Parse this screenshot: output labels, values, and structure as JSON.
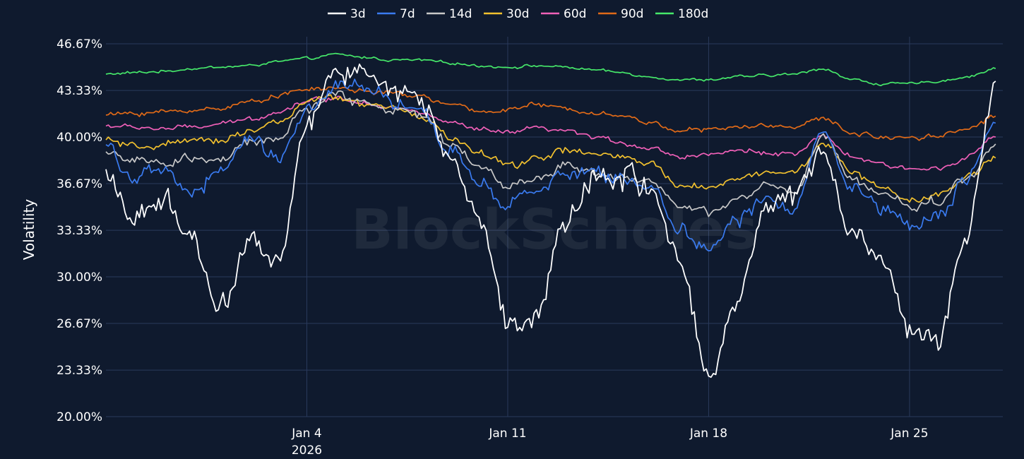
{
  "chart_data": {
    "type": "line",
    "title": "",
    "xlabel": "",
    "ylabel": "Volatility",
    "watermark": "BlockScholes",
    "ylim": [
      20.0,
      46.67
    ],
    "yticks": [
      "20.00%",
      "23.33%",
      "26.67%",
      "30.00%",
      "33.33%",
      "36.67%",
      "40.00%",
      "43.33%",
      "46.67%"
    ],
    "xlim": [
      "2025-12-28",
      "2026-01-28T06:00"
    ],
    "xticks": [
      {
        "date": "2026-01-04",
        "label": "Jan 4",
        "sublabel": "2026"
      },
      {
        "date": "2026-01-11",
        "label": "Jan 11",
        "sublabel": ""
      },
      {
        "date": "2026-01-18",
        "label": "Jan 18",
        "sublabel": ""
      },
      {
        "date": "2026-01-25",
        "label": "Jan 25",
        "sublabel": ""
      }
    ],
    "grid": true,
    "legend_position": "top-center",
    "x": [
      "2025-12-28",
      "2025-12-29",
      "2025-12-30",
      "2025-12-31",
      "2026-01-01",
      "2026-01-02",
      "2026-01-03",
      "2026-01-04",
      "2026-01-05",
      "2026-01-06",
      "2026-01-07",
      "2026-01-08",
      "2026-01-09",
      "2026-01-10",
      "2026-01-11",
      "2026-01-12",
      "2026-01-13",
      "2026-01-14",
      "2026-01-15",
      "2026-01-16",
      "2026-01-17",
      "2026-01-18",
      "2026-01-19",
      "2026-01-20",
      "2026-01-21",
      "2026-01-22",
      "2026-01-23",
      "2026-01-24",
      "2026-01-25",
      "2026-01-26",
      "2026-01-27",
      "2026-01-28"
    ],
    "series": [
      {
        "name": "3d",
        "color": "#ffffff",
        "values": [
          36.8,
          34.5,
          35.5,
          32.5,
          28.0,
          32.5,
          31.0,
          40.5,
          45.0,
          44.5,
          43.5,
          42.5,
          38.5,
          34.0,
          27.0,
          27.5,
          34.0,
          37.0,
          37.5,
          36.0,
          31.5,
          23.0,
          28.5,
          35.5,
          36.0,
          38.5,
          33.5,
          31.0,
          26.5,
          25.5,
          33.0,
          44.0
        ]
      },
      {
        "name": "7d",
        "color": "#3a7bf0",
        "values": [
          39.5,
          37.0,
          37.5,
          36.0,
          37.5,
          40.0,
          38.5,
          42.0,
          43.5,
          43.5,
          42.5,
          41.5,
          39.0,
          37.0,
          35.0,
          36.0,
          37.5,
          37.5,
          37.0,
          36.5,
          33.5,
          32.0,
          34.0,
          35.5,
          35.0,
          40.5,
          36.5,
          35.0,
          34.0,
          34.5,
          37.0,
          41.0
        ]
      },
      {
        "name": "14d",
        "color": "#c8c8c8",
        "values": [
          39.0,
          38.3,
          38.0,
          38.5,
          38.3,
          39.5,
          40.0,
          42.0,
          43.0,
          42.5,
          42.0,
          41.5,
          39.5,
          38.0,
          36.5,
          37.0,
          38.0,
          37.5,
          37.2,
          36.8,
          35.0,
          34.5,
          35.5,
          36.5,
          36.0,
          40.0,
          37.0,
          36.0,
          35.0,
          35.5,
          37.0,
          39.5
        ]
      },
      {
        "name": "30d",
        "color": "#f2c12e",
        "values": [
          39.8,
          39.2,
          39.5,
          39.6,
          39.8,
          40.5,
          41.0,
          42.5,
          42.8,
          42.3,
          42.0,
          41.5,
          40.0,
          38.8,
          38.0,
          38.5,
          39.0,
          38.8,
          38.5,
          38.0,
          36.5,
          36.5,
          37.0,
          37.5,
          37.5,
          39.5,
          37.5,
          36.5,
          35.5,
          36.0,
          37.0,
          38.5
        ]
      },
      {
        "name": "60d",
        "color": "#f060b8",
        "values": [
          40.8,
          40.7,
          40.6,
          40.7,
          40.9,
          41.3,
          41.8,
          42.6,
          42.8,
          42.5,
          42.1,
          41.7,
          41.0,
          40.5,
          40.3,
          40.6,
          40.4,
          40.0,
          39.6,
          39.2,
          38.6,
          38.8,
          39.0,
          38.9,
          38.8,
          40.0,
          38.6,
          38.0,
          37.7,
          37.8,
          38.6,
          40.0
        ]
      },
      {
        "name": "90d",
        "color": "#e06a18",
        "values": [
          41.6,
          41.7,
          41.8,
          41.9,
          42.1,
          42.5,
          43.0,
          43.4,
          43.5,
          43.3,
          43.1,
          42.9,
          42.3,
          41.8,
          42.0,
          42.3,
          42.0,
          41.8,
          41.5,
          41.0,
          40.5,
          40.5,
          40.7,
          40.8,
          40.8,
          41.3,
          40.3,
          40.0,
          40.0,
          40.1,
          40.6,
          41.5
        ]
      },
      {
        "name": "180d",
        "color": "#46e86a",
        "values": [
          44.5,
          44.6,
          44.7,
          44.9,
          45.0,
          45.1,
          45.4,
          45.6,
          45.9,
          45.7,
          45.5,
          45.5,
          45.3,
          45.1,
          45.0,
          45.1,
          45.0,
          44.8,
          44.6,
          44.3,
          44.1,
          44.1,
          44.3,
          44.4,
          44.5,
          44.9,
          44.1,
          43.8,
          43.8,
          44.0,
          44.3,
          44.9
        ]
      }
    ]
  }
}
